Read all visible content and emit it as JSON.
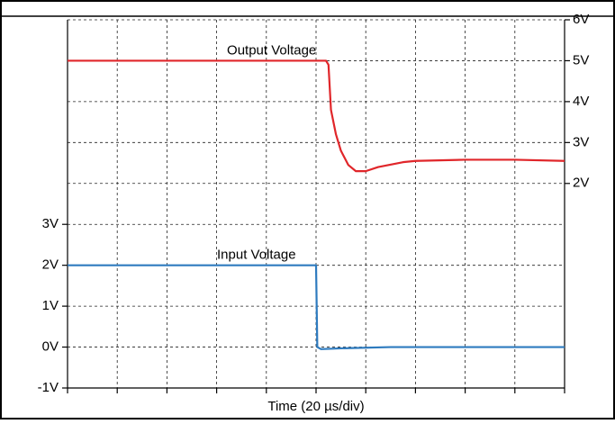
{
  "chart_data": {
    "type": "line",
    "xlabel": "Time (20 µs/div)",
    "xlim": [
      0,
      200
    ],
    "xticks": [
      0,
      20,
      40,
      60,
      80,
      100,
      120,
      140,
      160,
      180,
      200
    ],
    "show_xtick_labels": false,
    "ylim": [
      -1,
      8
    ],
    "yticks": [
      {
        "value": -1,
        "label": "-1V"
      },
      {
        "value": 0,
        "label": "0V"
      },
      {
        "value": 1,
        "label": "1V"
      },
      {
        "value": 2,
        "label": "2V"
      },
      {
        "value": 3,
        "label": "3V"
      }
    ],
    "y2lim": [
      -3,
      6
    ],
    "y2ticks": [
      {
        "value": 2,
        "label": "2V"
      },
      {
        "value": 3,
        "label": "3V"
      },
      {
        "value": 4,
        "label": "4V"
      },
      {
        "value": 5,
        "label": "5V"
      },
      {
        "value": 6,
        "label": "6V"
      }
    ],
    "grid": true,
    "series": [
      {
        "name": "Output Voltage",
        "color": "#e0262a",
        "axis": "y2",
        "x": [
          0,
          104,
          105,
          106,
          108,
          110,
          113,
          116,
          120,
          125,
          135,
          140,
          160,
          180,
          200
        ],
        "values": [
          5,
          5,
          4.9,
          3.8,
          3.2,
          2.8,
          2.45,
          2.3,
          2.3,
          2.4,
          2.52,
          2.55,
          2.58,
          2.58,
          2.55
        ]
      },
      {
        "name": "Input Voltage",
        "color": "#2e7bbf",
        "x": [
          0,
          100,
          100.5,
          102,
          110,
          130,
          200
        ],
        "values": [
          2,
          2,
          0,
          -0.05,
          -0.03,
          0,
          0
        ]
      }
    ]
  }
}
